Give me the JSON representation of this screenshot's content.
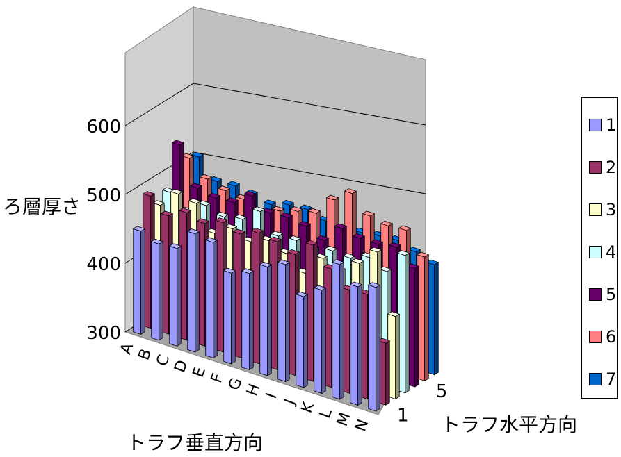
{
  "chart_data": {
    "type": "bar",
    "subtype": "3d-clustered-column",
    "ylabel": "ろ層厚さ",
    "xlabel": "トラフ垂直方向",
    "zlabel": "トラフ水平方向",
    "ylim": [
      300,
      650
    ],
    "yticks": [
      "300",
      "400",
      "500",
      "600"
    ],
    "categories": [
      "A",
      "B",
      "C",
      "D",
      "E",
      "F",
      "G",
      "H",
      "I",
      "J",
      "K",
      "L",
      "M",
      "N"
    ],
    "depth_ticks": [
      "1",
      "5"
    ],
    "legend_position": "right",
    "grid": true,
    "series": [
      {
        "name": "1",
        "color": "#9999FF",
        "values": [
          450,
          440,
          442,
          472,
          468,
          432,
          440,
          458,
          470,
          432,
          450,
          496,
          472,
          480
        ]
      },
      {
        "name": "2",
        "color": "#993366",
        "values": [
          492,
          472,
          485,
          478,
          488,
          480,
          490,
          486,
          476,
          498,
          472,
          450,
          452,
          390
        ]
      },
      {
        "name": "3",
        "color": "#FFFFCC",
        "values": [
          470,
          495,
          490,
          455,
          470,
          460,
          470,
          460,
          440,
          470,
          460,
          480,
          505,
          420
        ]
      },
      {
        "name": "4",
        "color": "#CCFFFF",
        "values": [
          480,
          460,
          478,
          470,
          475,
          495,
          468,
          470,
          466,
          472,
          470,
          480,
          468,
          500
        ]
      },
      {
        "name": "5",
        "color": "#660066",
        "values": [
          540,
          486,
          480,
          482,
          500,
          484,
          486,
          482,
          470,
          496,
          490,
          490,
          494,
          472
        ]
      },
      {
        "name": "6",
        "color": "#FF8080",
        "values": [
          512,
          490,
          482,
          478,
          468,
          478,
          486,
          492,
          520,
          538,
          514,
          508,
          510,
          480
        ]
      },
      {
        "name": "7",
        "color": "#0066CC",
        "values": [
          505,
          478,
          480,
          476,
          470,
          478,
          480,
          472,
          468,
          472,
          476,
          478,
          470,
          460
        ]
      }
    ]
  }
}
